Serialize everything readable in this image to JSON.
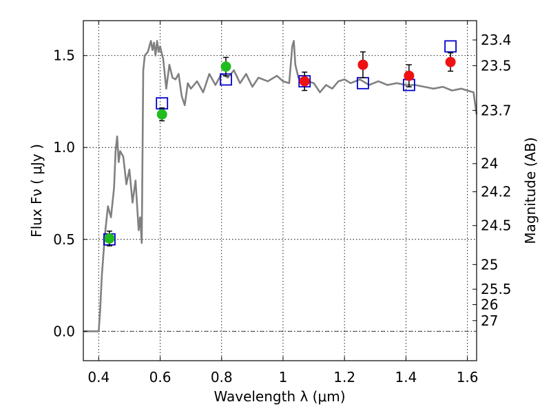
{
  "chart_data": {
    "type": "scatter",
    "xlabel": "Wavelength  λ (μm)",
    "ylabel": "Flux  Fν  ( μJy )",
    "y2label": "Magnitude (AB)",
    "xlim": [
      0.35,
      1.63
    ],
    "ylim": [
      -0.16,
      1.69
    ],
    "x_ticks": [
      0.4,
      0.6,
      0.8,
      1.0,
      1.2,
      1.4,
      1.6
    ],
    "x_tick_labels": [
      "0.4",
      "0.6",
      "0.8",
      "1",
      "1.2",
      "1.4",
      "1.6"
    ],
    "y_ticks": [
      0.0,
      0.5,
      1.0,
      1.5
    ],
    "y_tick_labels": [
      "0.0",
      "0.5",
      "1.0",
      "1.5"
    ],
    "y2_ticks": [
      {
        "label": "23.4",
        "flux": 1.585
      },
      {
        "label": "23.5",
        "flux": 1.445
      },
      {
        "label": "23.7",
        "flux": 1.202
      },
      {
        "label": "24",
        "flux": 0.912
      },
      {
        "label": "24.2",
        "flux": 0.759
      },
      {
        "label": "24.5",
        "flux": 0.575
      },
      {
        "label": "25",
        "flux": 0.363
      },
      {
        "label": "25.5",
        "flux": 0.229
      },
      {
        "label": "26",
        "flux": 0.145
      },
      {
        "label": "27",
        "flux": 0.058
      }
    ],
    "grid": true,
    "zero_line": true,
    "series": [
      {
        "kind": "model-spectrum",
        "color": "#808080",
        "x": [
          0.35,
          0.4,
          0.405,
          0.41,
          0.42,
          0.43,
          0.44,
          0.45,
          0.455,
          0.46,
          0.465,
          0.47,
          0.48,
          0.49,
          0.5,
          0.51,
          0.52,
          0.53,
          0.535,
          0.54,
          0.545,
          0.55,
          0.56,
          0.57,
          0.575,
          0.58,
          0.585,
          0.59,
          0.595,
          0.6,
          0.61,
          0.62,
          0.63,
          0.64,
          0.65,
          0.66,
          0.67,
          0.68,
          0.69,
          0.7,
          0.72,
          0.74,
          0.76,
          0.78,
          0.8,
          0.82,
          0.84,
          0.86,
          0.88,
          0.9,
          0.92,
          0.95,
          0.98,
          1.0,
          1.02,
          1.03,
          1.035,
          1.04,
          1.05,
          1.08,
          1.1,
          1.12,
          1.14,
          1.16,
          1.18,
          1.2,
          1.22,
          1.25,
          1.28,
          1.31,
          1.34,
          1.37,
          1.4,
          1.43,
          1.46,
          1.49,
          1.52,
          1.55,
          1.58,
          1.6,
          1.62,
          1.63
        ],
        "y": [
          0.0,
          0.0,
          0.12,
          0.3,
          0.52,
          0.68,
          0.62,
          0.78,
          0.98,
          1.06,
          0.92,
          0.98,
          0.95,
          0.8,
          0.88,
          0.7,
          0.82,
          0.55,
          0.62,
          0.48,
          1.42,
          1.5,
          1.52,
          1.58,
          1.53,
          1.57,
          1.5,
          1.58,
          1.52,
          1.55,
          1.48,
          1.32,
          1.45,
          1.38,
          1.37,
          1.4,
          1.28,
          1.23,
          1.35,
          1.32,
          1.36,
          1.3,
          1.4,
          1.34,
          1.4,
          1.38,
          1.42,
          1.35,
          1.4,
          1.33,
          1.38,
          1.36,
          1.39,
          1.36,
          1.35,
          1.55,
          1.58,
          1.45,
          1.38,
          1.36,
          1.35,
          1.3,
          1.34,
          1.32,
          1.36,
          1.37,
          1.35,
          1.37,
          1.34,
          1.36,
          1.34,
          1.35,
          1.34,
          1.34,
          1.33,
          1.32,
          1.33,
          1.31,
          1.32,
          1.31,
          1.3,
          1.18
        ]
      },
      {
        "kind": "model-photometry",
        "marker": "open-square",
        "color": "#0000cc",
        "x": [
          0.435,
          0.606,
          0.814,
          1.07,
          1.26,
          1.41,
          1.545
        ],
        "y": [
          0.5,
          1.24,
          1.37,
          1.36,
          1.35,
          1.34,
          1.55
        ]
      },
      {
        "kind": "observed-optical",
        "marker": "filled-circle",
        "color": "#22bb22",
        "x": [
          0.435,
          0.606,
          0.814
        ],
        "y": [
          0.505,
          1.18,
          1.44
        ],
        "err": [
          0.04,
          0.035,
          0.05
        ]
      },
      {
        "kind": "observed-nir",
        "marker": "filled-circle",
        "color": "#ee1111",
        "x": [
          1.07,
          1.26,
          1.41,
          1.545
        ],
        "y": [
          1.36,
          1.45,
          1.39,
          1.465
        ],
        "err": [
          0.05,
          0.07,
          0.06,
          0.05
        ]
      }
    ]
  }
}
